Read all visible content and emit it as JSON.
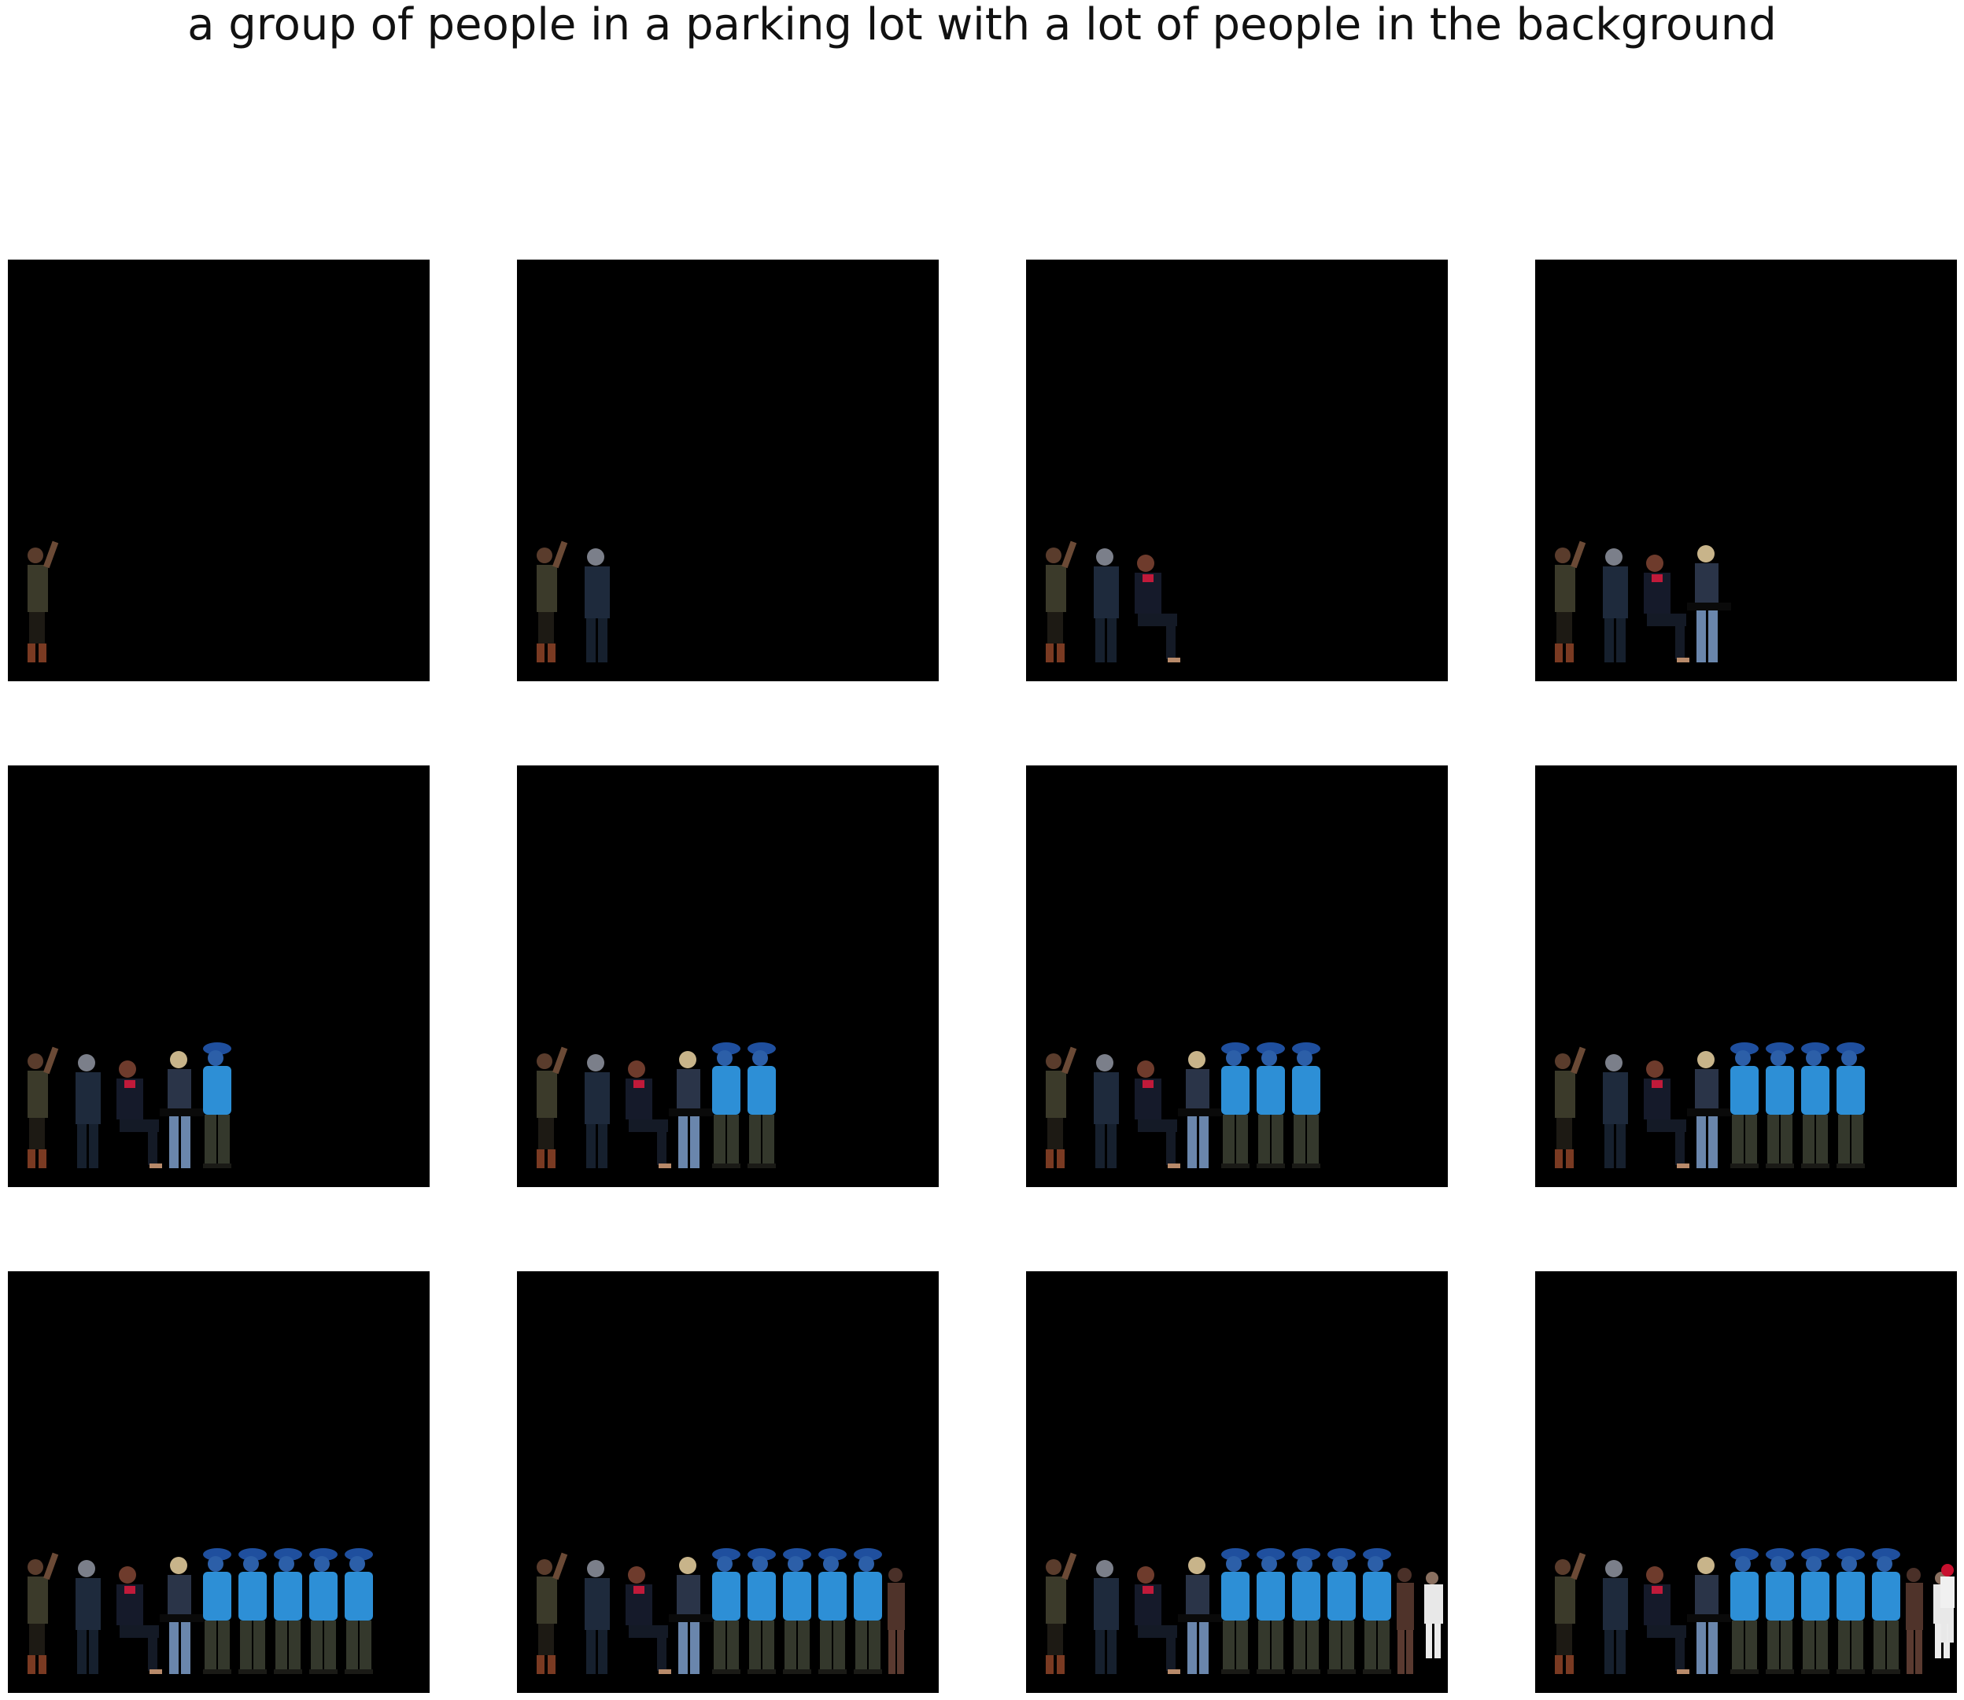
{
  "title": "a group of people in a parking lot with a lot of people in the background",
  "panels": [
    {
      "figures": [
        "woman-waving"
      ]
    },
    {
      "figures": [
        "woman-waving",
        "man-dark-jacket"
      ]
    },
    {
      "figures": [
        "woman-waving",
        "man-dark-jacket",
        "woman-red-scarf-seated"
      ]
    },
    {
      "figures": [
        "woman-waving",
        "man-dark-jacket",
        "woman-red-scarf-seated",
        "blonde-woman-jeans"
      ]
    },
    {
      "figures": [
        "woman-waving",
        "man-dark-jacket",
        "woman-red-scarf-seated",
        "blonde-woman-jeans",
        "man-blue-shirt-cap"
      ]
    },
    {
      "figures": [
        "woman-waving",
        "man-dark-jacket",
        "woman-red-scarf-seated",
        "blonde-woman-jeans",
        "man-blue-shirt-cap",
        "man-blue-shirt-cap"
      ]
    },
    {
      "figures": [
        "woman-waving",
        "man-dark-jacket",
        "woman-red-scarf-seated",
        "blonde-woman-jeans",
        "man-blue-shirt-cap",
        "man-blue-shirt-cap",
        "man-blue-shirt-cap"
      ]
    },
    {
      "figures": [
        "woman-waving",
        "man-dark-jacket",
        "woman-red-scarf-seated",
        "blonde-woman-jeans",
        "man-blue-shirt-cap",
        "man-blue-shirt-cap",
        "man-blue-shirt-cap",
        "man-blue-shirt-cap"
      ]
    },
    {
      "figures": [
        "woman-waving",
        "man-dark-jacket",
        "woman-red-scarf-seated",
        "blonde-woman-jeans",
        "man-blue-shirt-cap",
        "man-blue-shirt-cap",
        "man-blue-shirt-cap",
        "man-blue-shirt-cap",
        "man-blue-shirt-cap"
      ]
    },
    {
      "figures": [
        "woman-waving",
        "man-dark-jacket",
        "woman-red-scarf-seated",
        "blonde-woman-jeans",
        "man-blue-shirt-cap",
        "man-blue-shirt-cap",
        "man-blue-shirt-cap",
        "man-blue-shirt-cap",
        "man-blue-shirt-cap",
        "brown-figure"
      ]
    },
    {
      "figures": [
        "woman-waving",
        "man-dark-jacket",
        "woman-red-scarf-seated",
        "blonde-woman-jeans",
        "man-blue-shirt-cap",
        "man-blue-shirt-cap",
        "man-blue-shirt-cap",
        "man-blue-shirt-cap",
        "man-blue-shirt-cap",
        "brown-figure",
        "white-shirt-figure"
      ]
    },
    {
      "figures": [
        "woman-waving",
        "man-dark-jacket",
        "woman-red-scarf-seated",
        "blonde-woman-jeans",
        "man-blue-shirt-cap",
        "man-blue-shirt-cap",
        "man-blue-shirt-cap",
        "man-blue-shirt-cap",
        "man-blue-shirt-cap",
        "brown-figure",
        "white-shirt-figure",
        "man-red-cap"
      ]
    }
  ],
  "colors": {
    "panel_background": "#000000",
    "page_background": "#ffffff",
    "title_text": "#111111"
  }
}
